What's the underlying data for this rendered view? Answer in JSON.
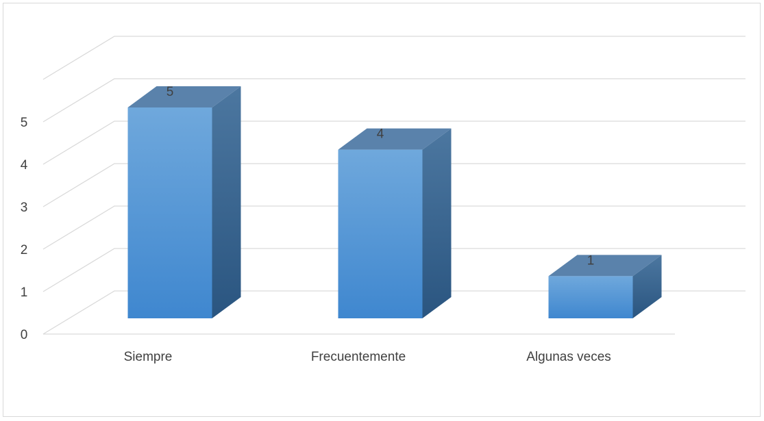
{
  "chart_data": {
    "type": "bar",
    "style": "3d-column",
    "categories": [
      "Siempre",
      "Frecuentemente",
      "Algunas veces"
    ],
    "values": [
      5,
      4,
      1
    ],
    "data_labels": [
      "5",
      "4",
      "1"
    ],
    "y_ticks": [
      "0",
      "1",
      "2",
      "3",
      "4",
      "5"
    ],
    "ylim": [
      0,
      6
    ],
    "grid": true,
    "legend": "none",
    "colors": {
      "front_top": "#6fa8dc",
      "front_bottom": "#3f87cf",
      "side_top": "#4c77a0",
      "side_bottom": "#2a5580",
      "top_face": "#5a82ab",
      "grid": "#d9d9d9"
    }
  }
}
